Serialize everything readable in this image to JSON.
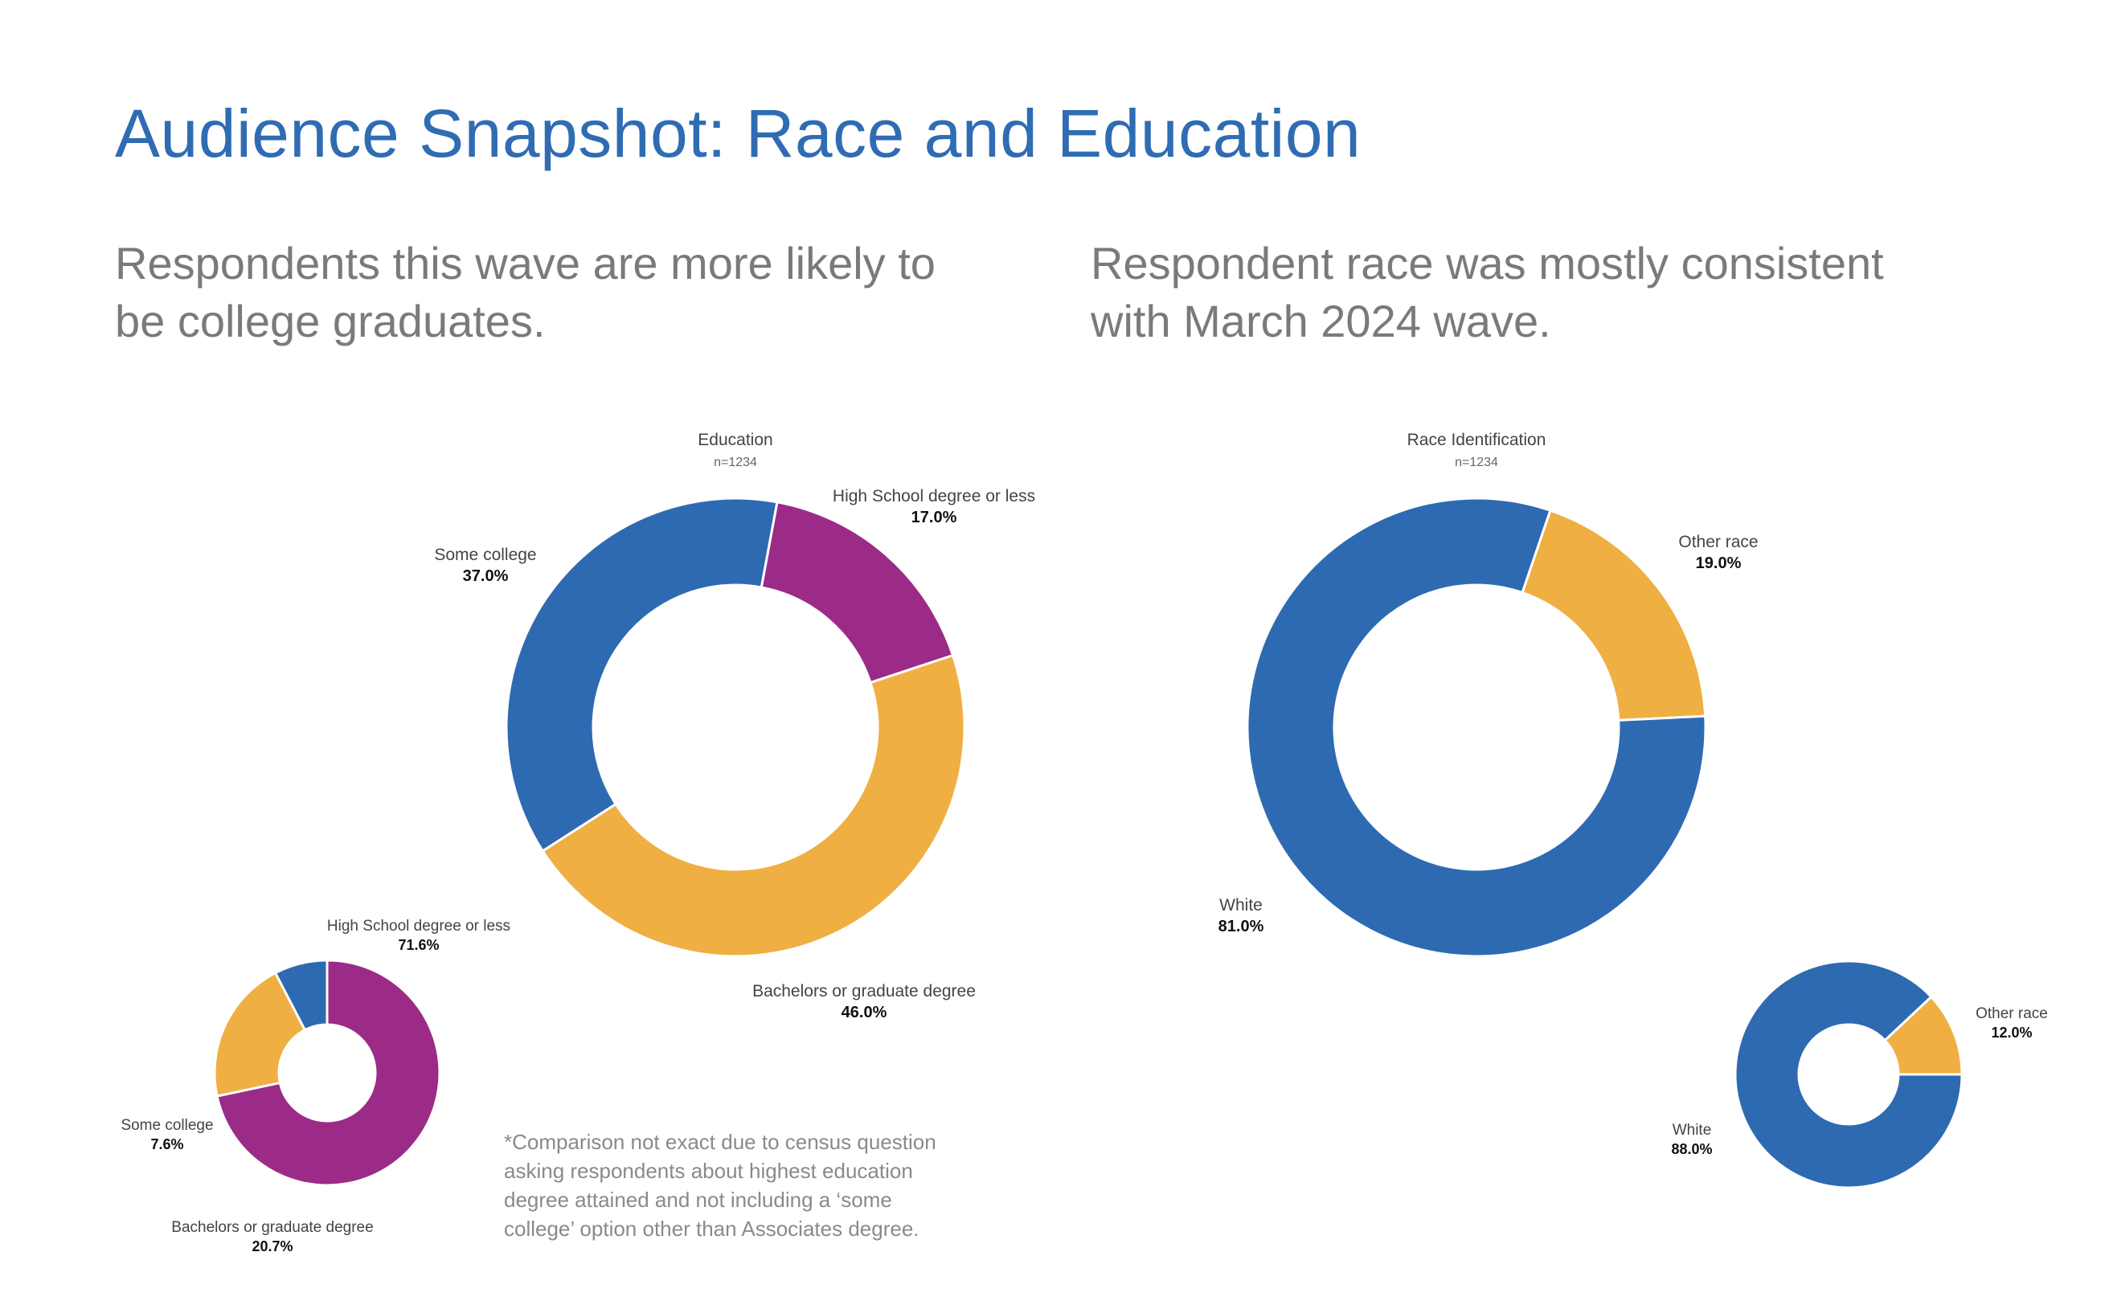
{
  "page": {
    "title": "Audience Snapshot: Race and Education",
    "subtitle_left_line1": "Respondents this wave are more likely to",
    "subtitle_left_line2": "be college graduates.",
    "subtitle_right_line1": "Respondent race was mostly consistent",
    "subtitle_right_line2": "with March 2024 wave.",
    "footnote_lines": [
      "*Comparison not exact due to census question",
      "asking respondents about highest education",
      "degree attained and not including a ‘some",
      "college’ option other than Associates degree."
    ]
  },
  "colors": {
    "blue": "#2e6ab1",
    "purple": "#9c2b87",
    "orange": "#efaf42",
    "title": "#2f6cb3"
  },
  "chart_data": [
    {
      "id": "education-main",
      "type": "donut",
      "title": "Education",
      "n_label": "n=1234",
      "slices": [
        {
          "label": "High School degree or less",
          "value": 17.0,
          "value_label": "17.0%",
          "color": "#9c2b87"
        },
        {
          "label": "Bachelors or graduate degree",
          "value": 46.0,
          "value_label": "46.0%",
          "color": "#efaf42"
        },
        {
          "label": "Some college",
          "value": 37.0,
          "value_label": "37.0%",
          "color": "#2e6ab1"
        }
      ]
    },
    {
      "id": "education-census",
      "type": "donut",
      "title": "",
      "n_label": "",
      "slices": [
        {
          "label": "High School degree or less",
          "value": 71.6,
          "value_label": "71.6%",
          "color": "#9c2b87"
        },
        {
          "label": "Bachelors or graduate degree",
          "value": 20.7,
          "value_label": "20.7%",
          "color": "#efaf42"
        },
        {
          "label": "Some college",
          "value": 7.6,
          "value_label": "7.6%",
          "color": "#2e6ab1"
        }
      ]
    },
    {
      "id": "race-main",
      "type": "donut",
      "title": "Race Identification",
      "n_label": "n=1234",
      "slices": [
        {
          "label": "Other race",
          "value": 19.0,
          "value_label": "19.0%",
          "color": "#efaf42"
        },
        {
          "label": "White",
          "value": 81.0,
          "value_label": "81.0%",
          "color": "#2e6ab1"
        }
      ]
    },
    {
      "id": "race-census",
      "type": "donut",
      "title": "",
      "n_label": "",
      "slices": [
        {
          "label": "Other race",
          "value": 12.0,
          "value_label": "12.0%",
          "color": "#efaf42"
        },
        {
          "label": "White",
          "value": 88.0,
          "value_label": "88.0%",
          "color": "#2e6ab1"
        }
      ]
    }
  ]
}
